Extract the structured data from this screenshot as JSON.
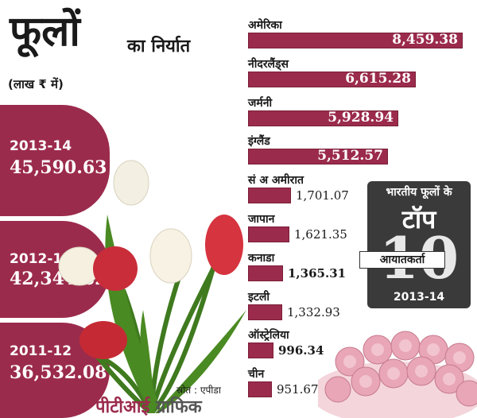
{
  "title": {
    "big": "फूलों",
    "rest": "का निर्यात"
  },
  "unit": "(लाख ₹ में)",
  "years": [
    {
      "year": "2013-14",
      "value": "45,590.63"
    },
    {
      "year": "2012-13",
      "value": "42,344.62"
    },
    {
      "year": "2011-12",
      "value": "36,532.08"
    }
  ],
  "box": {
    "heading": "भारतीय फूलों के",
    "top": "टॉप",
    "ten": "10",
    "pill": "आयातकर्ता",
    "year": "2013-14"
  },
  "source": "स्रोत : एपीडा",
  "credit": {
    "part1": "पीटीआई",
    "part2": "ग्राफिक"
  },
  "colors": {
    "accent": "#9b2b4c",
    "dark": "#3a3a3a"
  },
  "chart_data": {
    "type": "bar",
    "orientation": "horizontal",
    "categories": [
      "अमेरिका",
      "नीदरलैंड्स",
      "जर्मनी",
      "इंग्लैंड",
      "सं अ अमीरात",
      "जापान",
      "कनाडा",
      "इटली",
      "ऑस्ट्रेलिया",
      "चीन"
    ],
    "values": [
      8459.38,
      6615.28,
      5928.94,
      5512.57,
      1701.07,
      1621.35,
      1365.31,
      1332.93,
      996.34,
      951.67
    ],
    "labels": [
      "8,459.38",
      "6,615.28",
      "5,928.94",
      "5,512.57",
      "1,701.07",
      "1,621.35",
      "1,365.31",
      "1,332.93",
      "996.34",
      "951.67"
    ],
    "bold_labels": [
      true,
      true,
      true,
      true,
      false,
      false,
      true,
      false,
      true,
      false
    ]
  }
}
